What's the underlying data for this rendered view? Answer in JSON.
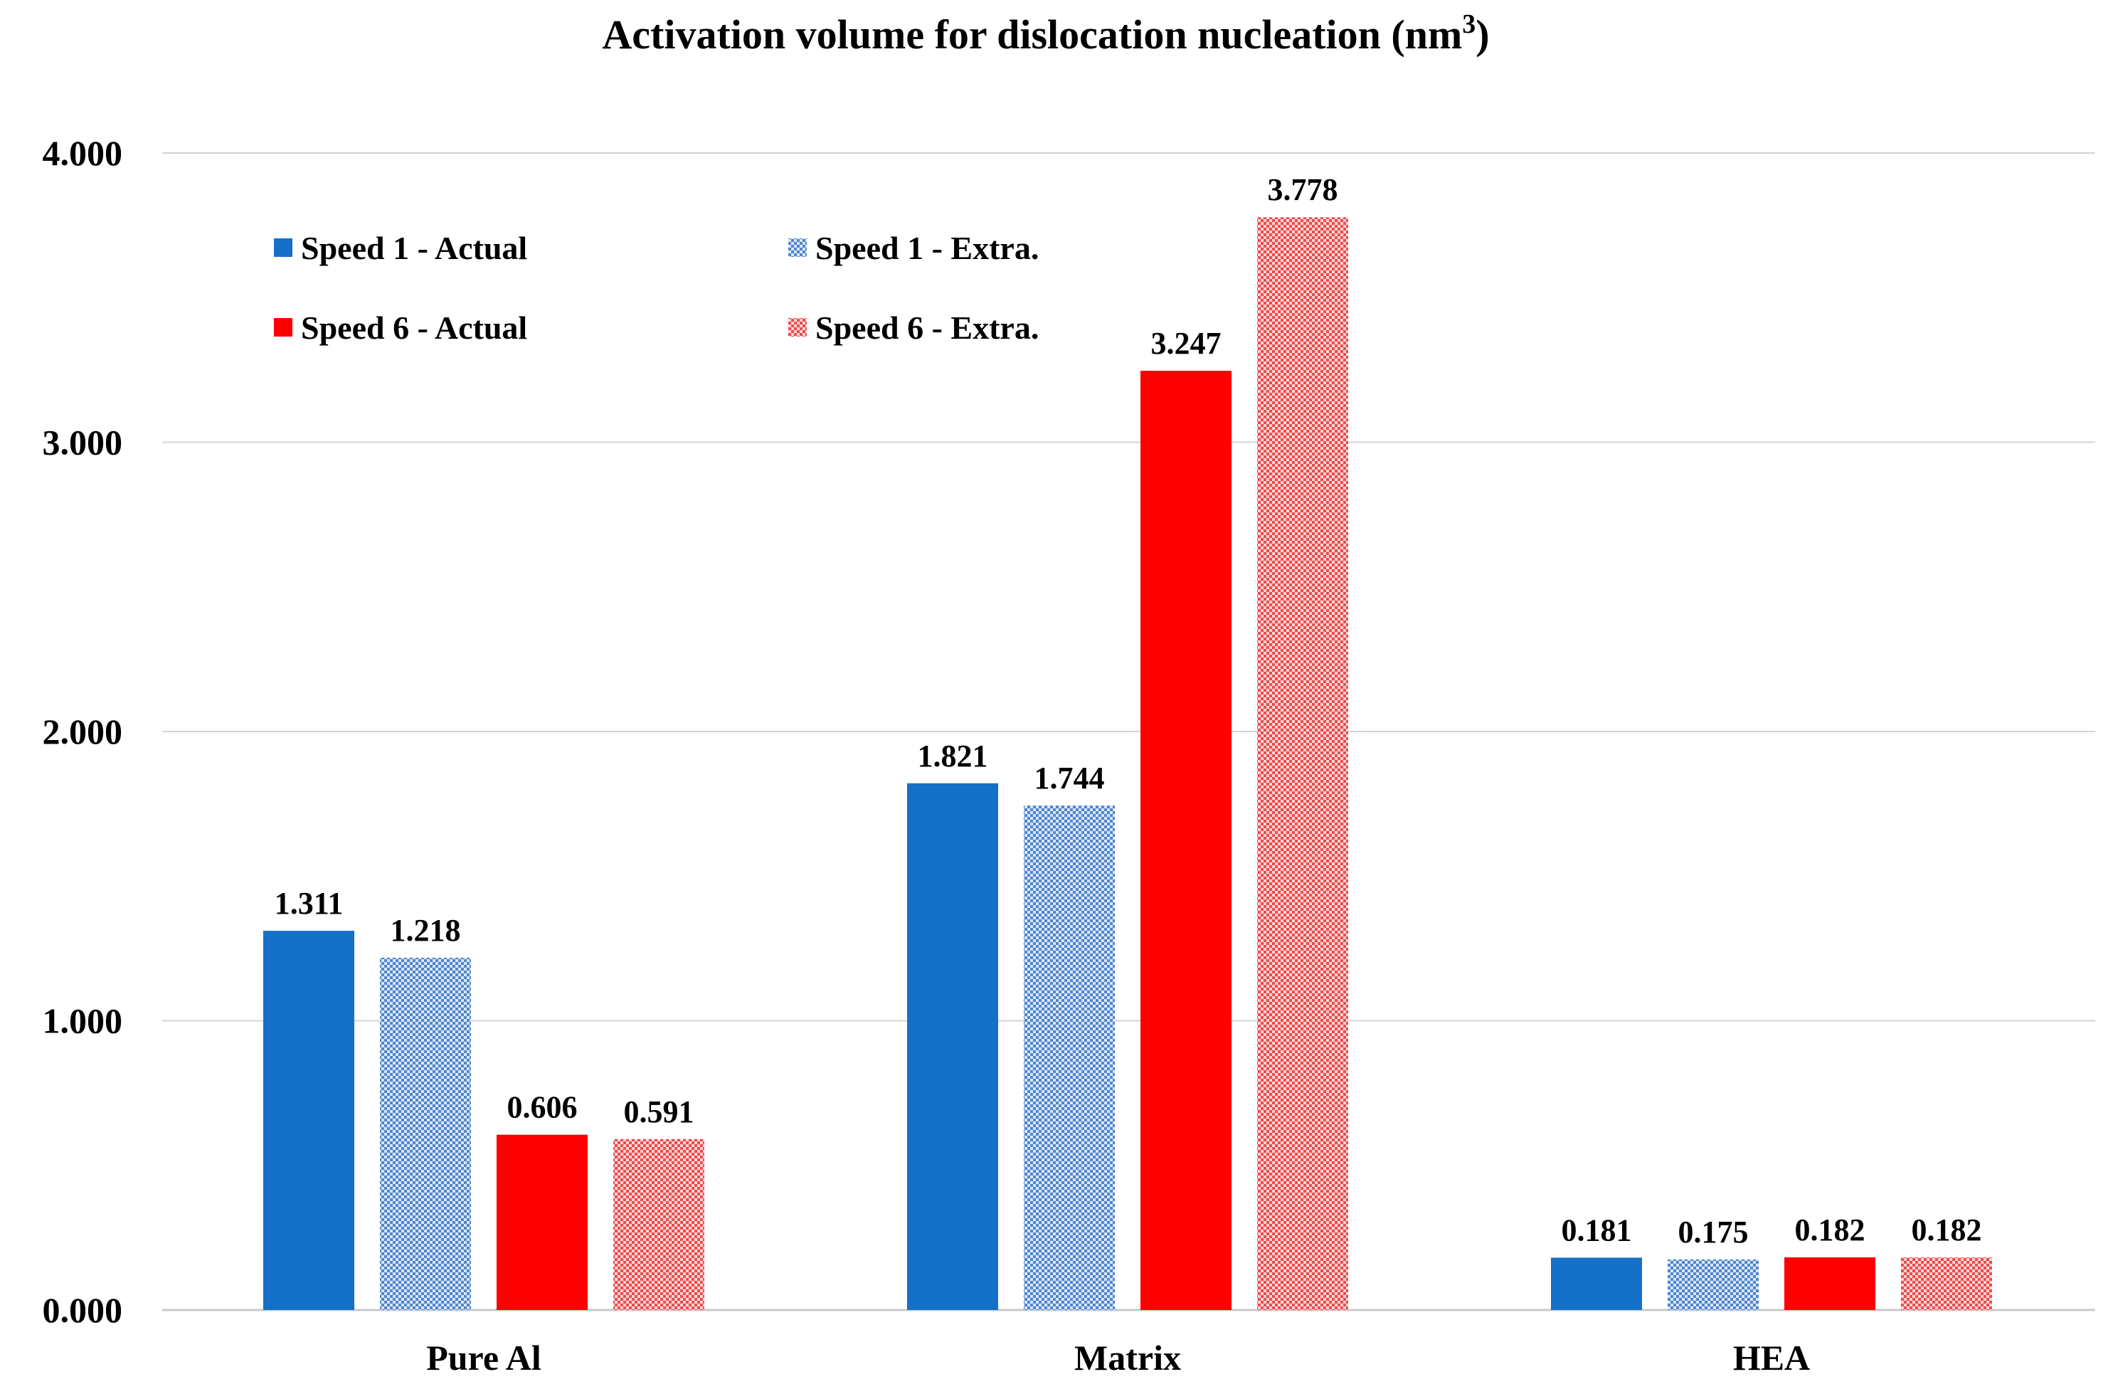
{
  "chart_data": {
    "type": "bar",
    "title": "Activation volume for dislocation nucleation (nm",
    "title_superscript": "3",
    "title_suffix": ")",
    "xlabel": "",
    "ylabel": "",
    "categories": [
      "Pure Al",
      "Matrix",
      "HEA"
    ],
    "ylim": [
      0,
      4
    ],
    "yticks": [
      0,
      1,
      2,
      3,
      4
    ],
    "ytick_labels": [
      "0.000",
      "1.000",
      "2.000",
      "3.000",
      "4.000"
    ],
    "grid": true,
    "legend_position": "top-left",
    "series": [
      {
        "name": "Speed 1 - Actual",
        "color": "#1570c8",
        "pattern": "solid",
        "values": [
          1.311,
          1.821,
          0.181
        ],
        "labels": [
          "1.311",
          "1.821",
          "0.181"
        ]
      },
      {
        "name": "Speed 1 - Extra.",
        "color": "#7fa6dc",
        "pattern": "checker",
        "values": [
          1.218,
          1.744,
          0.175
        ],
        "labels": [
          "1.218",
          "1.744",
          "0.175"
        ]
      },
      {
        "name": "Speed 6 - Actual",
        "color": "#ff0000",
        "pattern": "solid",
        "values": [
          0.606,
          3.247,
          0.182
        ],
        "labels": [
          "0.606",
          "3.247",
          "0.182"
        ]
      },
      {
        "name": "Speed 6 - Extra.",
        "color": "#f07a7a",
        "pattern": "checker",
        "values": [
          0.591,
          3.778,
          0.182
        ],
        "labels": [
          "0.591",
          "3.778",
          "0.182"
        ]
      }
    ]
  }
}
